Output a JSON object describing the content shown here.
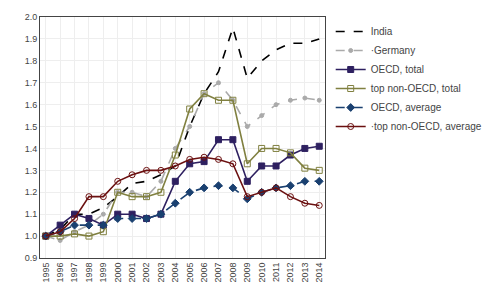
{
  "chart_data": {
    "type": "line",
    "x": [
      1995,
      1996,
      1997,
      1998,
      1999,
      2000,
      2001,
      2002,
      2003,
      2004,
      2005,
      2006,
      2007,
      2008,
      2009,
      2010,
      2011,
      2012,
      2013,
      2014
    ],
    "xlim": [
      1994.6,
      2014.4
    ],
    "xticks": [
      1995,
      1996,
      1997,
      1998,
      1999,
      2000,
      2001,
      2002,
      2003,
      2004,
      2005,
      2006,
      2007,
      2008,
      2009,
      2010,
      2011,
      2012,
      2013,
      2014
    ],
    "ylim": [
      0.9,
      2.0
    ],
    "yticks": [
      0.9,
      {
        "value": 1.0,
        "label": "1.0"
      },
      1.1,
      1.2,
      1.3,
      1.4,
      1.5,
      1.6,
      1.7,
      1.8,
      1.9,
      {
        "value": 2.0,
        "label": "2.0"
      }
    ],
    "grid": true,
    "legend": "right",
    "series": [
      {
        "name": "India",
        "color": "#000000",
        "line_style": "dashed",
        "marker": "none",
        "values": [
          1.0,
          1.03,
          1.1,
          1.1,
          1.13,
          1.18,
          1.24,
          1.25,
          1.28,
          1.32,
          1.5,
          1.65,
          1.75,
          1.95,
          1.72,
          1.8,
          1.85,
          1.88,
          1.88,
          1.9
        ]
      },
      {
        "name": "·Germany",
        "color": "#aaaaaa",
        "line_style": "dashed",
        "marker": "point",
        "values": [
          1.0,
          0.98,
          1.02,
          1.05,
          1.1,
          1.2,
          1.2,
          1.18,
          1.25,
          1.4,
          1.5,
          1.65,
          1.7,
          1.62,
          1.5,
          1.55,
          1.6,
          1.62,
          1.63,
          1.62
        ]
      },
      {
        "name": "OECD, total",
        "color": "#2e2060",
        "line_style": "solid",
        "marker": "square",
        "values": [
          1.0,
          1.05,
          1.1,
          1.08,
          1.05,
          1.1,
          1.1,
          1.08,
          1.1,
          1.25,
          1.33,
          1.34,
          1.44,
          1.44,
          1.25,
          1.32,
          1.32,
          1.37,
          1.4,
          1.41
        ]
      },
      {
        "name": "top non-OECD, total",
        "color": "#808040",
        "line_style": "solid",
        "marker": "square-open",
        "values": [
          1.0,
          1.0,
          1.01,
          1.0,
          1.02,
          1.2,
          1.18,
          1.18,
          1.2,
          1.37,
          1.58,
          1.65,
          1.62,
          1.62,
          1.33,
          1.4,
          1.4,
          1.38,
          1.31,
          1.3
        ]
      },
      {
        "name": "OECD, average",
        "color": "#1a4070",
        "line_style": "dashed",
        "marker": "diamond",
        "values": [
          1.0,
          1.02,
          1.05,
          1.05,
          1.05,
          1.08,
          1.08,
          1.08,
          1.1,
          1.15,
          1.2,
          1.22,
          1.23,
          1.22,
          1.17,
          1.2,
          1.22,
          1.23,
          1.25,
          1.25
        ]
      },
      {
        "name": "·top non-OECD, average",
        "color": "#6b1010",
        "line_style": "solid",
        "marker": "circle-open",
        "values": [
          1.0,
          1.02,
          1.08,
          1.18,
          1.18,
          1.25,
          1.28,
          1.3,
          1.3,
          1.32,
          1.35,
          1.36,
          1.35,
          1.33,
          1.18,
          1.2,
          1.22,
          1.18,
          1.15,
          1.14
        ]
      }
    ]
  }
}
